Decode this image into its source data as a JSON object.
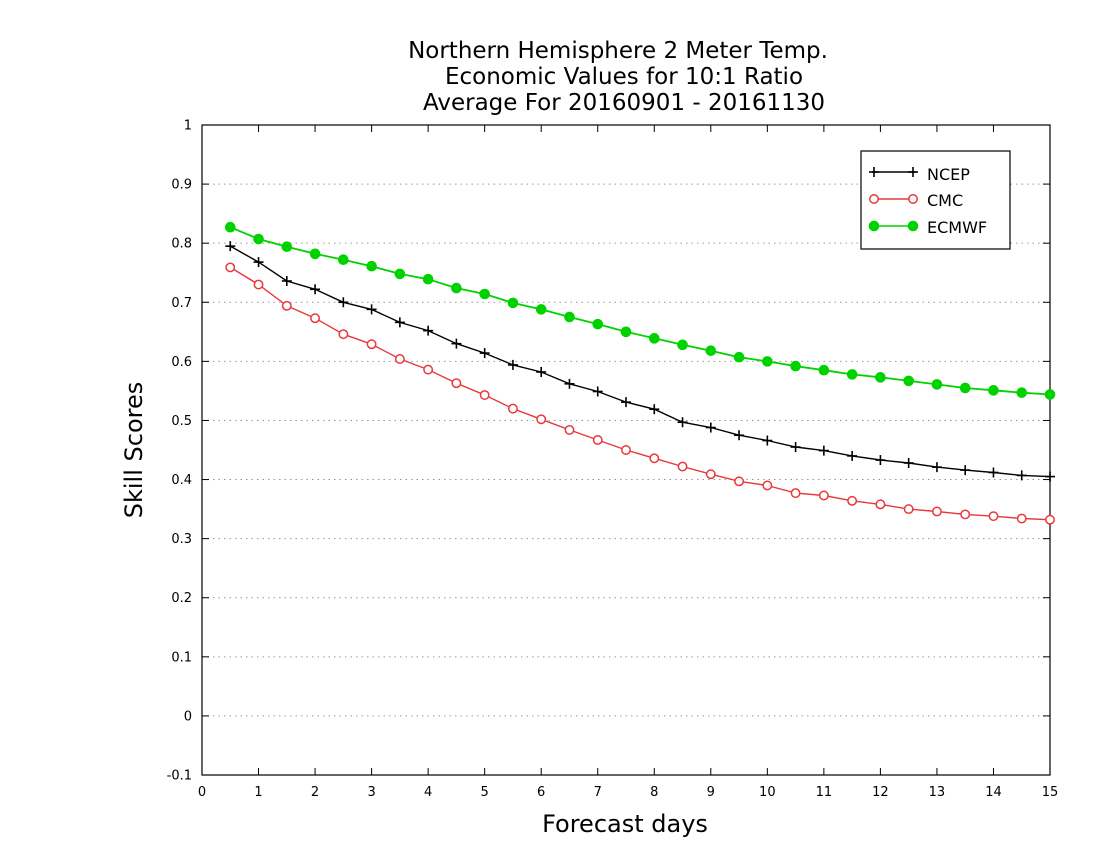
{
  "chart_data": {
    "type": "line",
    "title_lines": [
      "Northern Hemisphere 2 Meter Temp.",
      "Economic Values for 10:1 Ratio",
      "Average For 20160901 - 20161130"
    ],
    "xlabel": "Forecast days",
    "ylabel": "Skill Scores",
    "xlim": [
      0,
      15
    ],
    "ylim": [
      -0.1,
      1
    ],
    "xticks": [
      "0",
      "1",
      "2",
      "3",
      "4",
      "5",
      "6",
      "7",
      "8",
      "9",
      "10",
      "11",
      "12",
      "13",
      "14",
      "15"
    ],
    "yticks": [
      "-0.1",
      "0",
      "0.1",
      "0.2",
      "0.3",
      "0.4",
      "0.5",
      "0.6",
      "0.7",
      "0.8",
      "0.9",
      "1"
    ],
    "grid": "horizontal dotted",
    "legend_position": "top-right",
    "x": [
      0.5,
      1,
      1.5,
      2,
      2.5,
      3,
      3.5,
      4,
      4.5,
      5,
      5.5,
      6,
      6.5,
      7,
      7.5,
      8,
      8.5,
      9,
      9.5,
      10,
      10.5,
      11,
      11.5,
      12,
      12.5,
      13,
      13.5,
      14,
      14.5,
      15
    ],
    "series": [
      {
        "name": "NCEP",
        "color": "#000000",
        "marker": "plus",
        "values": [
          0.795,
          0.768,
          0.736,
          0.722,
          0.7,
          0.688,
          0.666,
          0.652,
          0.63,
          0.614,
          0.594,
          0.582,
          0.562,
          0.549,
          0.531,
          0.519,
          0.497,
          0.488,
          0.475,
          0.466,
          0.455,
          0.449,
          0.44,
          0.433,
          0.428,
          0.421,
          0.416,
          0.412,
          0.407,
          0.405
        ]
      },
      {
        "name": "CMC",
        "color": "#e8383b",
        "marker": "open-circle",
        "values": [
          0.759,
          0.73,
          0.694,
          0.673,
          0.646,
          0.629,
          0.604,
          0.586,
          0.563,
          0.543,
          0.52,
          0.502,
          0.484,
          0.467,
          0.45,
          0.436,
          0.422,
          0.409,
          0.397,
          0.39,
          0.377,
          0.373,
          0.364,
          0.358,
          0.35,
          0.346,
          0.341,
          0.338,
          0.334,
          0.332
        ]
      },
      {
        "name": "ECMWF",
        "color": "#00d200",
        "marker": "filled-circle",
        "values": [
          0.827,
          0.807,
          0.794,
          0.782,
          0.772,
          0.761,
          0.748,
          0.739,
          0.724,
          0.714,
          0.699,
          0.688,
          0.675,
          0.663,
          0.65,
          0.639,
          0.628,
          0.618,
          0.607,
          0.6,
          0.592,
          0.585,
          0.578,
          0.573,
          0.567,
          0.561,
          0.555,
          0.551,
          0.547,
          0.544
        ]
      }
    ]
  }
}
